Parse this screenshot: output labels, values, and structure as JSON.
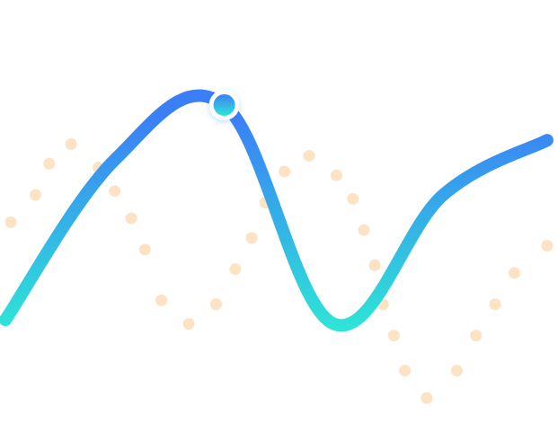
{
  "chart_data": {
    "type": "line",
    "grid": false,
    "legend": false,
    "colors": {
      "line_gradient_top": "#3a7ff6",
      "line_gradient_bottom": "#2ee6d6",
      "dots": "#fde3c3",
      "marker_fill_top": "#3a7ff6",
      "marker_fill_bottom": "#2ee6d6",
      "marker_ring": "#ffffff"
    },
    "ylim": [
      0,
      100
    ],
    "xlim": [
      0,
      100
    ],
    "series": [
      {
        "kind": "smooth-line",
        "points": [
          {
            "x": 0,
            "y": 25
          },
          {
            "x": 20,
            "y": 66
          },
          {
            "x": 40,
            "y": 80
          },
          {
            "x": 60,
            "y": 24
          },
          {
            "x": 80,
            "y": 57
          },
          {
            "x": 99,
            "y": 71
          }
        ],
        "highlight_index": 2
      },
      {
        "kind": "dots",
        "points": [
          {
            "x": 1,
            "y": 50
          },
          {
            "x": 5.5,
            "y": 57
          },
          {
            "x": 8,
            "y": 65
          },
          {
            "x": 12,
            "y": 70
          },
          {
            "x": 17,
            "y": 64
          },
          {
            "x": 20,
            "y": 58
          },
          {
            "x": 23,
            "y": 51
          },
          {
            "x": 25.5,
            "y": 43
          },
          {
            "x": 28.5,
            "y": 30
          },
          {
            "x": 33.5,
            "y": 24
          },
          {
            "x": 38.5,
            "y": 29
          },
          {
            "x": 42,
            "y": 38
          },
          {
            "x": 45,
            "y": 46
          },
          {
            "x": 47.5,
            "y": 55
          },
          {
            "x": 51,
            "y": 63
          },
          {
            "x": 55.5,
            "y": 67
          },
          {
            "x": 60.5,
            "y": 62
          },
          {
            "x": 63.5,
            "y": 56
          },
          {
            "x": 65.5,
            "y": 48
          },
          {
            "x": 67.5,
            "y": 39
          },
          {
            "x": 69,
            "y": 29
          },
          {
            "x": 71,
            "y": 21
          },
          {
            "x": 73,
            "y": 12
          },
          {
            "x": 77,
            "y": 5
          },
          {
            "x": 82.5,
            "y": 12
          },
          {
            "x": 86,
            "y": 21
          },
          {
            "x": 89.5,
            "y": 29
          },
          {
            "x": 93,
            "y": 37
          },
          {
            "x": 99,
            "y": 44
          }
        ]
      }
    ]
  }
}
